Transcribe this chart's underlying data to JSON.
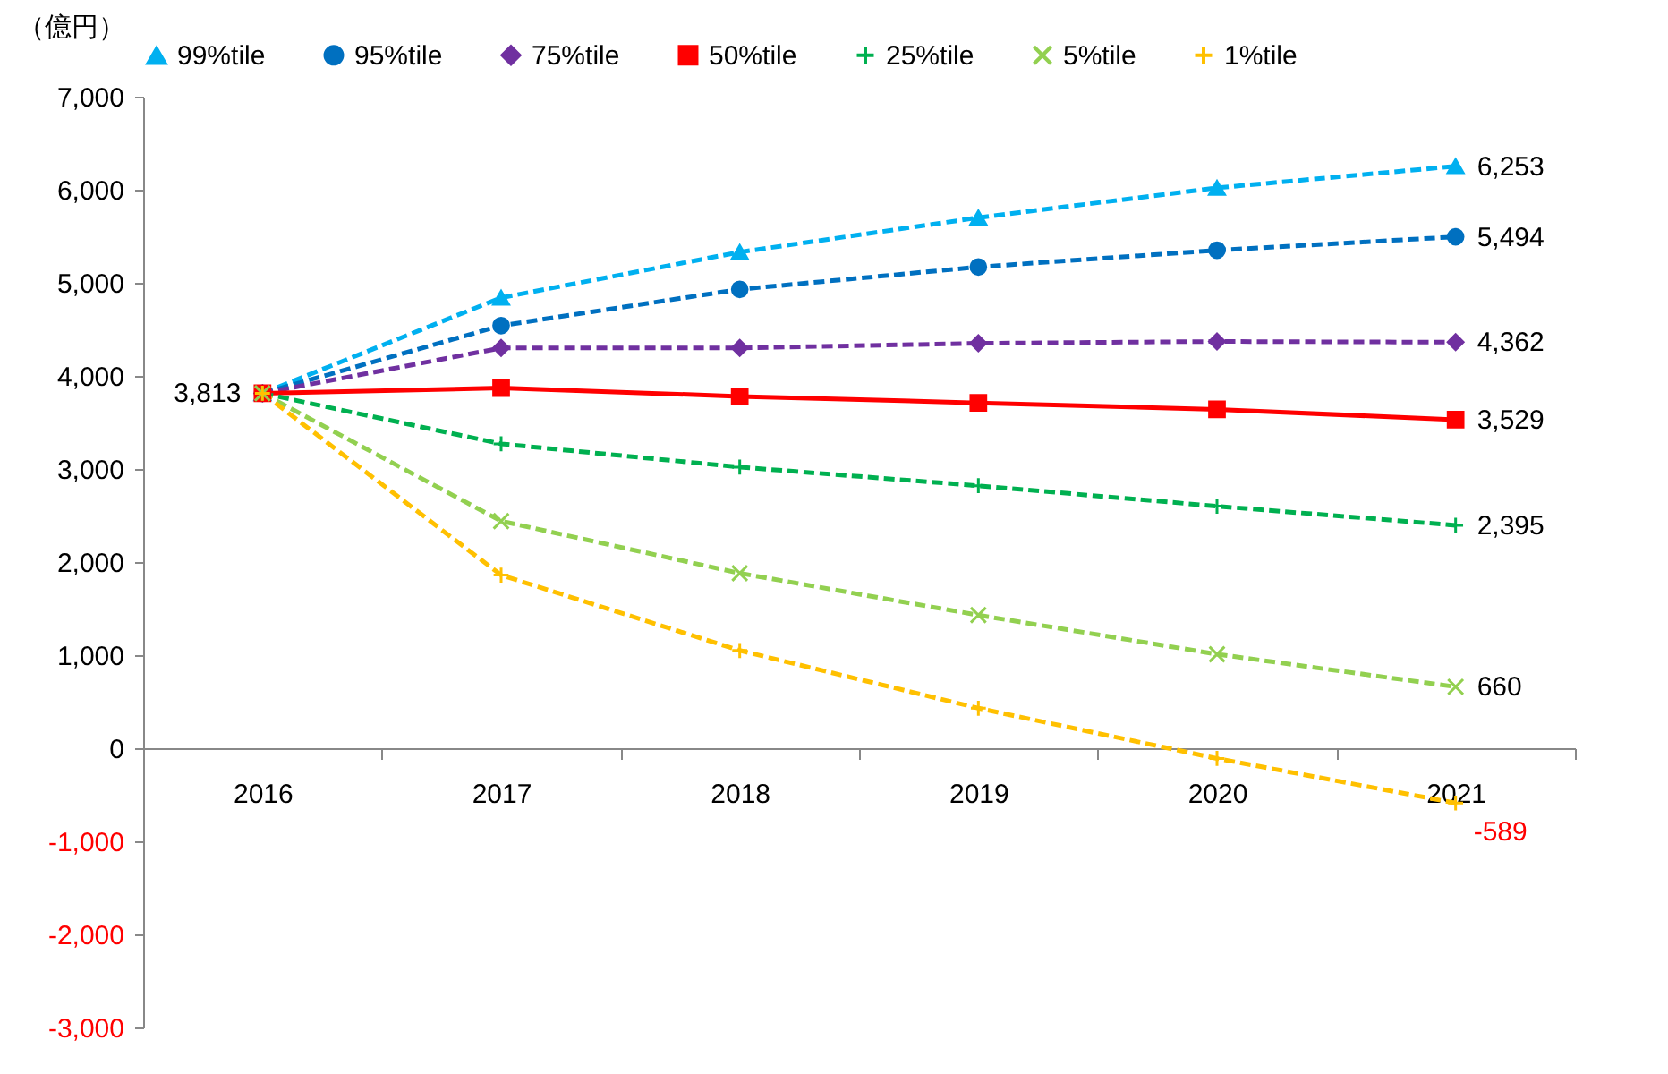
{
  "chart_data": {
    "type": "line",
    "ylabel": "（億円）",
    "categories": [
      "2016",
      "2017",
      "2018",
      "2019",
      "2020",
      "2021"
    ],
    "ylim": [
      -3000,
      7000
    ],
    "yticks": [
      {
        "value": -3000,
        "label": "-3,000"
      },
      {
        "value": -2000,
        "label": "-2,000"
      },
      {
        "value": -1000,
        "label": "-1,000"
      },
      0,
      {
        "value": 1000,
        "label": "1,000"
      },
      {
        "value": 2000,
        "label": "2,000"
      },
      {
        "value": 3000,
        "label": "3,000"
      },
      {
        "value": 4000,
        "label": "4,000"
      },
      {
        "value": 5000,
        "label": "5,000"
      },
      {
        "value": 6000,
        "label": "6,000"
      },
      {
        "value": 7000,
        "label": "7,000"
      }
    ],
    "grid": false,
    "legend": "top",
    "series": [
      {
        "name": "99%tile",
        "color": "#00b0f0",
        "marker": "triangle",
        "line_style": "dashed",
        "values": [
          3813,
          4840,
          5330,
          5700,
          6020,
          6253
        ],
        "value_labels": [
          null,
          null,
          null,
          null,
          null,
          "6,253"
        ]
      },
      {
        "name": "95%tile",
        "color": "#0070c0",
        "marker": "circle",
        "line_style": "dashed",
        "values": [
          3813,
          4540,
          4930,
          5170,
          5350,
          5494
        ],
        "value_labels": [
          null,
          null,
          null,
          null,
          null,
          "5,494"
        ]
      },
      {
        "name": "75%tile",
        "color": "#7030a0",
        "marker": "diamond",
        "line_style": "dashed",
        "values": [
          3813,
          4300,
          4300,
          4350,
          4370,
          4362
        ],
        "value_labels": [
          null,
          null,
          null,
          null,
          null,
          "4,362"
        ]
      },
      {
        "name": "50%tile",
        "color": "#ff0000",
        "marker": "square",
        "line_style": "solid",
        "values": [
          3813,
          3870,
          3780,
          3710,
          3640,
          3529
        ],
        "value_labels": [
          "3,813",
          null,
          null,
          null,
          null,
          "3,529"
        ]
      },
      {
        "name": "25%tile",
        "color": "#00b050",
        "marker": "cross",
        "line_style": "dashed",
        "values": [
          3813,
          3270,
          3020,
          2820,
          2600,
          2395
        ],
        "value_labels": [
          null,
          null,
          null,
          null,
          null,
          "2,395"
        ]
      },
      {
        "name": "5%tile",
        "color": "#92d050",
        "marker": "x",
        "line_style": "dashed",
        "values": [
          3813,
          2440,
          1880,
          1430,
          1010,
          660
        ],
        "value_labels": [
          null,
          null,
          null,
          null,
          null,
          "660"
        ]
      },
      {
        "name": "1%tile",
        "color": "#ffc000",
        "marker": "cross",
        "line_style": "dashed",
        "values": [
          3813,
          1860,
          1050,
          430,
          -110,
          -589
        ],
        "value_labels": [
          null,
          null,
          null,
          null,
          null,
          "-589"
        ]
      }
    ]
  }
}
